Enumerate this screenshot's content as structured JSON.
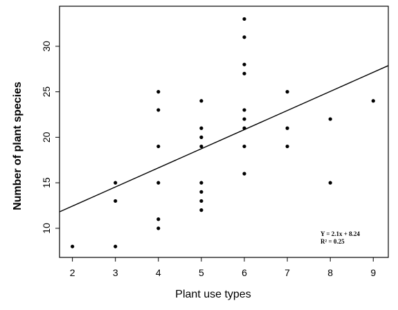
{
  "chart_data": {
    "type": "scatter",
    "title": "",
    "xlabel": "Plant use types",
    "ylabel": "Number of plant species",
    "xlim": [
      1.7,
      9.35
    ],
    "ylim": [
      6.8,
      34.4
    ],
    "xticks": [
      2,
      3,
      4,
      5,
      6,
      7,
      8,
      9
    ],
    "yticks": [
      10,
      15,
      20,
      25,
      30
    ],
    "grid": false,
    "legend": "none",
    "series": [
      {
        "points": [
          {
            "x": 2,
            "y": 8
          },
          {
            "x": 3,
            "y": 8
          },
          {
            "x": 3,
            "y": 13
          },
          {
            "x": 3,
            "y": 15
          },
          {
            "x": 4,
            "y": 10
          },
          {
            "x": 4,
            "y": 11
          },
          {
            "x": 4,
            "y": 15
          },
          {
            "x": 4,
            "y": 19
          },
          {
            "x": 4,
            "y": 23
          },
          {
            "x": 4,
            "y": 25
          },
          {
            "x": 5,
            "y": 12
          },
          {
            "x": 5,
            "y": 13
          },
          {
            "x": 5,
            "y": 14
          },
          {
            "x": 5,
            "y": 15
          },
          {
            "x": 5,
            "y": 19
          },
          {
            "x": 5,
            "y": 20
          },
          {
            "x": 5,
            "y": 21
          },
          {
            "x": 5,
            "y": 24
          },
          {
            "x": 6,
            "y": 16
          },
          {
            "x": 6,
            "y": 19
          },
          {
            "x": 6,
            "y": 21
          },
          {
            "x": 6,
            "y": 22
          },
          {
            "x": 6,
            "y": 23
          },
          {
            "x": 6,
            "y": 27
          },
          {
            "x": 6,
            "y": 28
          },
          {
            "x": 6,
            "y": 31
          },
          {
            "x": 6,
            "y": 33
          },
          {
            "x": 7,
            "y": 19
          },
          {
            "x": 7,
            "y": 21
          },
          {
            "x": 7,
            "y": 25
          },
          {
            "x": 8,
            "y": 15
          },
          {
            "x": 8,
            "y": 22
          },
          {
            "x": 9,
            "y": 24
          }
        ]
      }
    ],
    "trendline": {
      "slope": 2.1,
      "intercept": 8.24
    },
    "annotation": {
      "line1": "Y = 2.1x + 8.24",
      "line2": "R² = 0.25"
    }
  }
}
